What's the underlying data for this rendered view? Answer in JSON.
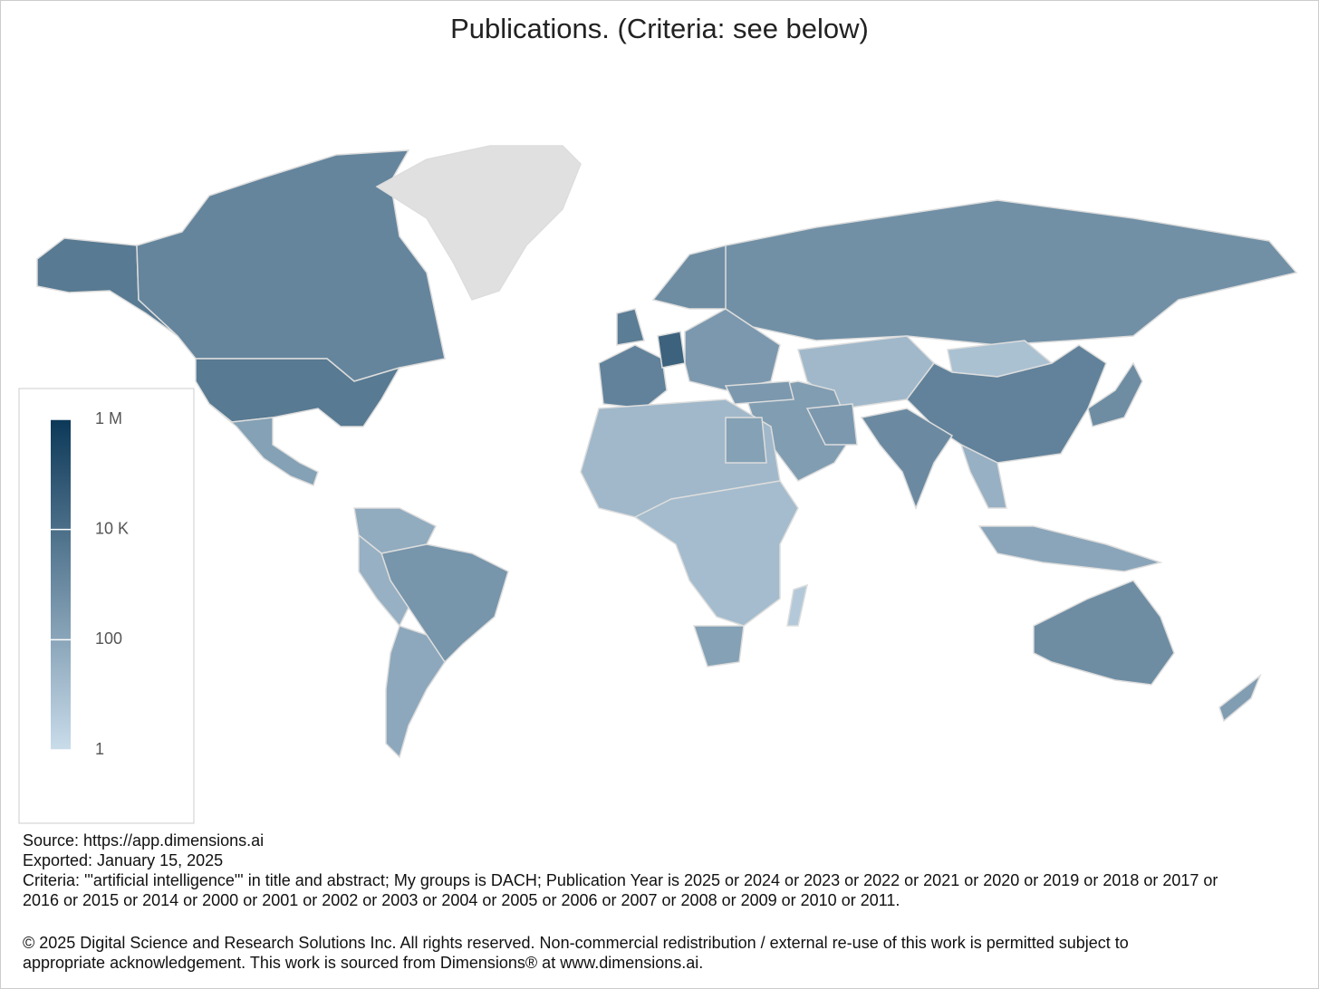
{
  "chart_data": {
    "type": "choropleth",
    "title": "Publications. (Criteria: see below)",
    "values": [
      4000,
      4000,
      1500,
      150,
      60,
      400,
      40,
      80,
      null,
      3000,
      2000,
      30000,
      800,
      300,
      600,
      20,
      10,
      2000,
      800,
      1000,
      200,
      300,
      300,
      20,
      150,
      15,
      150,
      40,
      100,
      800,
      200,
      5
    ],
    "ylim": [
      1,
      1000000
    ],
    "log_scale": true,
    "yticks": [
      {
        "value": 1000000,
        "label": "1 M"
      },
      {
        "value": 10000,
        "label": "10 K"
      },
      100,
      1
    ],
    "colors": [
      "#c9dcea",
      "#0c3858"
    ],
    "missing_color": "#e0e0e0",
    "source": "Source: https://app.dimensions.ai",
    "exported": "Exported: January 15, 2025",
    "criteria": "Criteria: '\"artificial intelligence\"' in title and abstract; My groups is DACH; Publication Year is 2025 or 2024 or 2023 or 2022 or 2021 or 2020 or 2019 or 2018 or 2017 or 2016 or 2015 or 2014 or 2000 or 2001 or 2002 or 2003 or 2004 or 2005 or 2006 or 2007 or 2008 or 2009 or 2010 or 2011.",
    "copyright": "© 2025 Digital Science and Research Solutions Inc. All rights reserved. Non-commercial redistribution / external re-use of this work is permitted subject to appropriate acknowledgement. This work is sourced from Dimensions® at www.dimensions.ai."
  }
}
